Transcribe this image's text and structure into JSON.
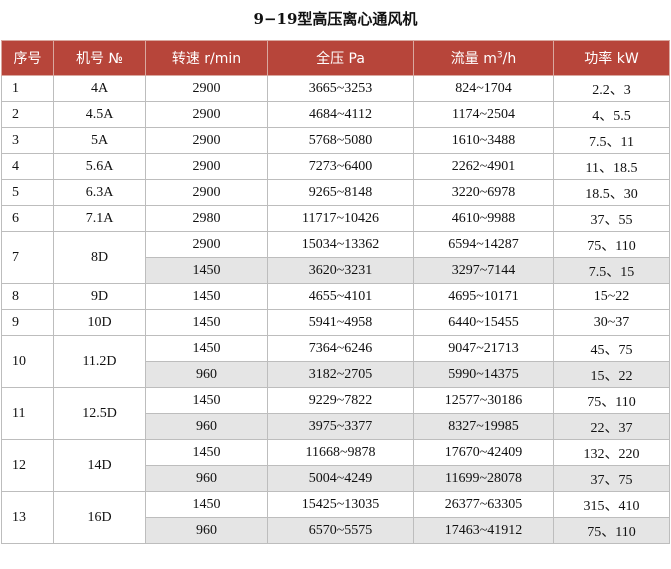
{
  "title": "9−19型高压离心通风机",
  "headers": {
    "seq": "序号",
    "model": "机号 №",
    "speed": "转速 r/min",
    "pressure": "全压 Pa",
    "flow_prefix": "流量 m",
    "flow_sup": "3",
    "flow_suffix": "/h",
    "power": "功率 kW"
  },
  "groups": [
    {
      "seq": "1",
      "model": "4A",
      "rows": [
        {
          "speed": "2900",
          "pressure": "3665~3253",
          "flow": "824~1704",
          "power": "2.2、3"
        }
      ]
    },
    {
      "seq": "2",
      "model": "4.5A",
      "rows": [
        {
          "speed": "2900",
          "pressure": "4684~4112",
          "flow": "1174~2504",
          "power": "4、5.5"
        }
      ]
    },
    {
      "seq": "3",
      "model": "5A",
      "rows": [
        {
          "speed": "2900",
          "pressure": "5768~5080",
          "flow": "1610~3488",
          "power": "7.5、11"
        }
      ]
    },
    {
      "seq": "4",
      "model": "5.6A",
      "rows": [
        {
          "speed": "2900",
          "pressure": "7273~6400",
          "flow": "2262~4901",
          "power": "11、18.5"
        }
      ]
    },
    {
      "seq": "5",
      "model": "6.3A",
      "rows": [
        {
          "speed": "2900",
          "pressure": "9265~8148",
          "flow": "3220~6978",
          "power": "18.5、30"
        }
      ]
    },
    {
      "seq": "6",
      "model": "7.1A",
      "rows": [
        {
          "speed": "2980",
          "pressure": "11717~10426",
          "flow": "4610~9988",
          "power": "37、55"
        }
      ]
    },
    {
      "seq": "7",
      "model": "8D",
      "rows": [
        {
          "speed": "2900",
          "pressure": "15034~13362",
          "flow": "6594~14287",
          "power": "75、110"
        },
        {
          "speed": "1450",
          "pressure": "3620~3231",
          "flow": "3297~7144",
          "power": "7.5、15"
        }
      ]
    },
    {
      "seq": "8",
      "model": "9D",
      "rows": [
        {
          "speed": "1450",
          "pressure": "4655~4101",
          "flow": "4695~10171",
          "power": "15~22"
        }
      ]
    },
    {
      "seq": "9",
      "model": "10D",
      "rows": [
        {
          "speed": "1450",
          "pressure": "5941~4958",
          "flow": "6440~15455",
          "power": "30~37"
        }
      ]
    },
    {
      "seq": "10",
      "model": "11.2D",
      "rows": [
        {
          "speed": "1450",
          "pressure": "7364~6246",
          "flow": "9047~21713",
          "power": "45、75"
        },
        {
          "speed": "960",
          "pressure": "3182~2705",
          "flow": "5990~14375",
          "power": "15、22"
        }
      ]
    },
    {
      "seq": "11",
      "model": "12.5D",
      "rows": [
        {
          "speed": "1450",
          "pressure": "9229~7822",
          "flow": "12577~30186",
          "power": "75、110"
        },
        {
          "speed": "960",
          "pressure": "3975~3377",
          "flow": "8327~19985",
          "power": "22、37"
        }
      ]
    },
    {
      "seq": "12",
      "model": "14D",
      "rows": [
        {
          "speed": "1450",
          "pressure": "11668~9878",
          "flow": "17670~42409",
          "power": "132、220"
        },
        {
          "speed": "960",
          "pressure": "5004~4249",
          "flow": "11699~28078",
          "power": "37、75"
        }
      ]
    },
    {
      "seq": "13",
      "model": "16D",
      "rows": [
        {
          "speed": "1450",
          "pressure": "15425~13035",
          "flow": "26377~63305",
          "power": "315、410"
        },
        {
          "speed": "960",
          "pressure": "6570~5575",
          "flow": "17463~41912",
          "power": "75、110"
        }
      ]
    }
  ],
  "colors": {
    "header_bg": "#b7453a",
    "header_text": "#ffffff",
    "shade": "#e5e5e5",
    "grid": "#bdbdbd"
  }
}
